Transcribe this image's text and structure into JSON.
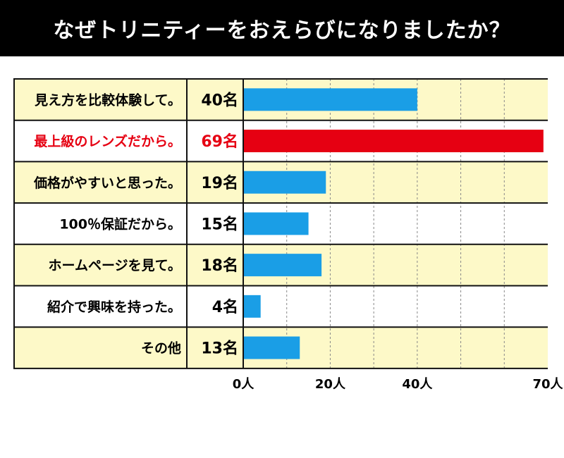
{
  "title": "なぜトリニティーをおえらびになりましたか？",
  "chart_data": {
    "type": "bar",
    "orientation": "horizontal",
    "categories": [
      "見え方を比較体験して。",
      "最上級のレンズだから。",
      "価格がやすいと思った。",
      "100％保証だから。",
      "ホームページを見て。",
      "紹介で興味を持った。",
      "その他"
    ],
    "count_labels": [
      "40名",
      "69名",
      "19名",
      "15名",
      "18名",
      "4名",
      "13名"
    ],
    "values": [
      40,
      69,
      19,
      15,
      18,
      4,
      13
    ],
    "highlight_index": 1,
    "xlim": [
      0,
      70
    ],
    "x_ticks": [
      {
        "value": 0,
        "label": "0人"
      },
      {
        "value": 20,
        "label": "20人"
      },
      {
        "value": 40,
        "label": "40人"
      },
      {
        "value": 70,
        "label": "70人"
      }
    ],
    "gridlines": [
      10,
      20,
      30,
      40,
      50,
      60
    ],
    "grid": true,
    "colors": {
      "bar": "#1a9ee6",
      "bar_highlight": "#e60012",
      "highlight_text": "#e60012",
      "row_alt": "#fdf9c8",
      "row": "#ffffff",
      "border": "#111111",
      "grid": "#888888",
      "text": "#000000"
    }
  }
}
